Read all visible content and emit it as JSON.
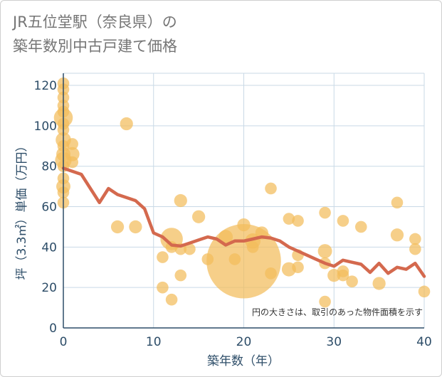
{
  "chart_data": {
    "type": "scatter",
    "title_lines": [
      "JR五位堂駅（奈良県）の",
      "築年数別中古戸建て価格"
    ],
    "xlabel": "築年数（年）",
    "ylabel": "坪（3.3㎡）単価（万円）",
    "note": "円の大きさは、取引のあった物件面積を示す",
    "xlim": [
      0,
      40
    ],
    "ylim": [
      0,
      126
    ],
    "xticks": [
      0,
      10,
      20,
      30,
      40
    ],
    "yticks": [
      0,
      20,
      40,
      60,
      80,
      100,
      120
    ],
    "grid": true,
    "colors": {
      "bubble": "#f2bc5b",
      "line": "#d4694e",
      "axis": "#2d4d68"
    },
    "scatter": [
      {
        "x": 0,
        "y": 121,
        "s": 1
      },
      {
        "x": 0,
        "y": 118,
        "s": 1
      },
      {
        "x": 0,
        "y": 114,
        "s": 1
      },
      {
        "x": 0,
        "y": 110,
        "s": 1
      },
      {
        "x": 0,
        "y": 107,
        "s": 1
      },
      {
        "x": 0,
        "y": 104,
        "s": 1.6
      },
      {
        "x": 0,
        "y": 101,
        "s": 1
      },
      {
        "x": 0,
        "y": 98,
        "s": 1
      },
      {
        "x": 0,
        "y": 93,
        "s": 1.3
      },
      {
        "x": 0,
        "y": 90,
        "s": 1
      },
      {
        "x": 0,
        "y": 86,
        "s": 1.2
      },
      {
        "x": 0,
        "y": 83,
        "s": 1.4
      },
      {
        "x": 0,
        "y": 80,
        "s": 1
      },
      {
        "x": 0,
        "y": 74,
        "s": 1
      },
      {
        "x": 0,
        "y": 70,
        "s": 1.2
      },
      {
        "x": 0,
        "y": 67,
        "s": 1
      },
      {
        "x": 0,
        "y": 62,
        "s": 1
      },
      {
        "x": 1,
        "y": 91,
        "s": 1
      },
      {
        "x": 1,
        "y": 86,
        "s": 1.2
      },
      {
        "x": 1,
        "y": 82,
        "s": 1
      },
      {
        "x": 7,
        "y": 101,
        "s": 1.1
      },
      {
        "x": 6,
        "y": 50,
        "s": 1.1
      },
      {
        "x": 8,
        "y": 50,
        "s": 1.1
      },
      {
        "x": 11,
        "y": 35,
        "s": 1
      },
      {
        "x": 11,
        "y": 20,
        "s": 1
      },
      {
        "x": 12,
        "y": 14,
        "s": 1
      },
      {
        "x": 12,
        "y": 44,
        "s": 1.9
      },
      {
        "x": 12,
        "y": 40,
        "s": 1
      },
      {
        "x": 13,
        "y": 63,
        "s": 1.1
      },
      {
        "x": 13,
        "y": 39,
        "s": 1
      },
      {
        "x": 13,
        "y": 26,
        "s": 1
      },
      {
        "x": 14,
        "y": 39,
        "s": 1
      },
      {
        "x": 15,
        "y": 55,
        "s": 1.1
      },
      {
        "x": 16,
        "y": 34,
        "s": 1
      },
      {
        "x": 18,
        "y": 45,
        "s": 1.2
      },
      {
        "x": 19,
        "y": 34,
        "s": 1
      },
      {
        "x": 20,
        "y": 33,
        "s": 6.3
      },
      {
        "x": 20,
        "y": 51,
        "s": 1.1
      },
      {
        "x": 21,
        "y": 43,
        "s": 1.3
      },
      {
        "x": 21,
        "y": 40,
        "s": 1
      },
      {
        "x": 22,
        "y": 47,
        "s": 1.1
      },
      {
        "x": 23,
        "y": 69,
        "s": 1
      },
      {
        "x": 23,
        "y": 27,
        "s": 1
      },
      {
        "x": 25,
        "y": 54,
        "s": 1
      },
      {
        "x": 25,
        "y": 29,
        "s": 1.2
      },
      {
        "x": 26,
        "y": 53,
        "s": 1
      },
      {
        "x": 26,
        "y": 36,
        "s": 1
      },
      {
        "x": 26,
        "y": 30,
        "s": 1
      },
      {
        "x": 29,
        "y": 57,
        "s": 1
      },
      {
        "x": 29,
        "y": 38,
        "s": 1.2
      },
      {
        "x": 29,
        "y": 32,
        "s": 1
      },
      {
        "x": 29,
        "y": 13,
        "s": 1
      },
      {
        "x": 30,
        "y": 26,
        "s": 1.1
      },
      {
        "x": 31,
        "y": 53,
        "s": 1
      },
      {
        "x": 31,
        "y": 28,
        "s": 1
      },
      {
        "x": 31,
        "y": 26,
        "s": 1
      },
      {
        "x": 32,
        "y": 23,
        "s": 1
      },
      {
        "x": 33,
        "y": 50,
        "s": 1
      },
      {
        "x": 35,
        "y": 22,
        "s": 1.1
      },
      {
        "x": 37,
        "y": 62,
        "s": 1
      },
      {
        "x": 37,
        "y": 46,
        "s": 1.1
      },
      {
        "x": 39,
        "y": 44,
        "s": 1
      },
      {
        "x": 39,
        "y": 39,
        "s": 1
      },
      {
        "x": 40,
        "y": 18,
        "s": 1
      }
    ],
    "line": {
      "x": [
        0,
        2,
        4,
        5,
        6,
        8,
        9,
        10,
        11,
        12,
        13,
        14,
        15,
        16,
        17,
        18,
        19,
        20,
        21,
        22,
        23,
        24,
        25,
        26,
        27,
        28,
        29,
        30,
        31,
        32,
        33,
        34,
        35,
        36,
        37,
        38,
        39,
        40
      ],
      "y": [
        79,
        76,
        62,
        69,
        66,
        63,
        59,
        47,
        45,
        41,
        40.5,
        42,
        43.5,
        45,
        44,
        41,
        43,
        43,
        44,
        45,
        44.5,
        43,
        40,
        38,
        36,
        34,
        32,
        30.5,
        33.5,
        32.5,
        31.5,
        27.5,
        32,
        27,
        30,
        29,
        32,
        25.5
      ]
    }
  }
}
